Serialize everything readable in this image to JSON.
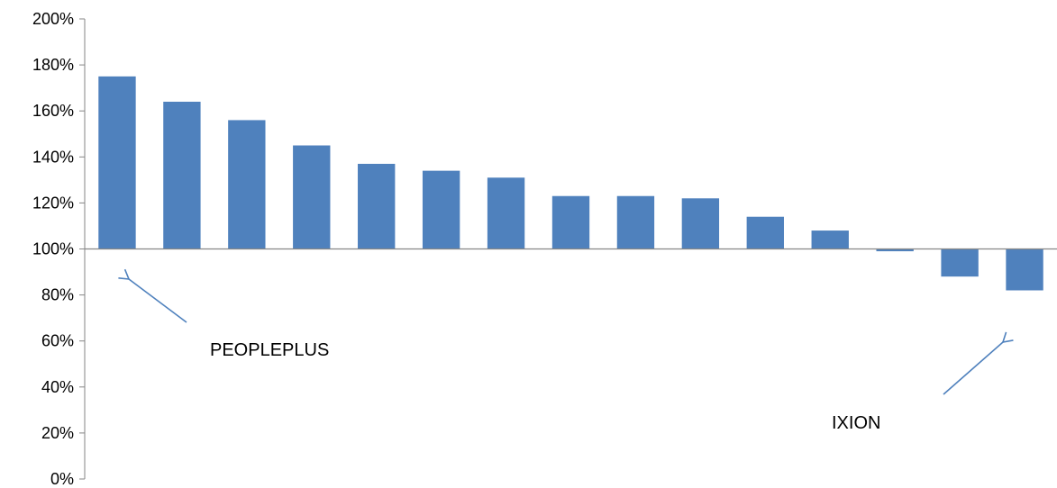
{
  "chart_data": {
    "type": "bar",
    "title": "",
    "xlabel": "",
    "ylabel": "",
    "baseline": 100,
    "ylim": [
      0,
      200
    ],
    "y_ticks": [
      {
        "value": 0,
        "label": "0%"
      },
      {
        "value": 20,
        "label": "20%"
      },
      {
        "value": 40,
        "label": "40%"
      },
      {
        "value": 60,
        "label": "60%"
      },
      {
        "value": 80,
        "label": "80%"
      },
      {
        "value": 100,
        "label": "100%"
      },
      {
        "value": 120,
        "label": "120%"
      },
      {
        "value": 140,
        "label": "140%"
      },
      {
        "value": 160,
        "label": "160%"
      },
      {
        "value": 180,
        "label": "180%"
      },
      {
        "value": 200,
        "label": "200%"
      }
    ],
    "values": [
      175,
      164,
      156,
      145,
      137,
      134,
      131,
      123,
      123,
      122,
      114,
      108,
      99,
      88,
      82
    ],
    "grid": false,
    "legend": "none",
    "bar_color": "#4F81BD",
    "axis_color": "#868686",
    "arrow_color": "#4F81BD",
    "annotations": [
      {
        "text": "PEOPLEPLUS",
        "bar_index": 0
      },
      {
        "text": "IXION",
        "bar_index": 14
      }
    ]
  }
}
